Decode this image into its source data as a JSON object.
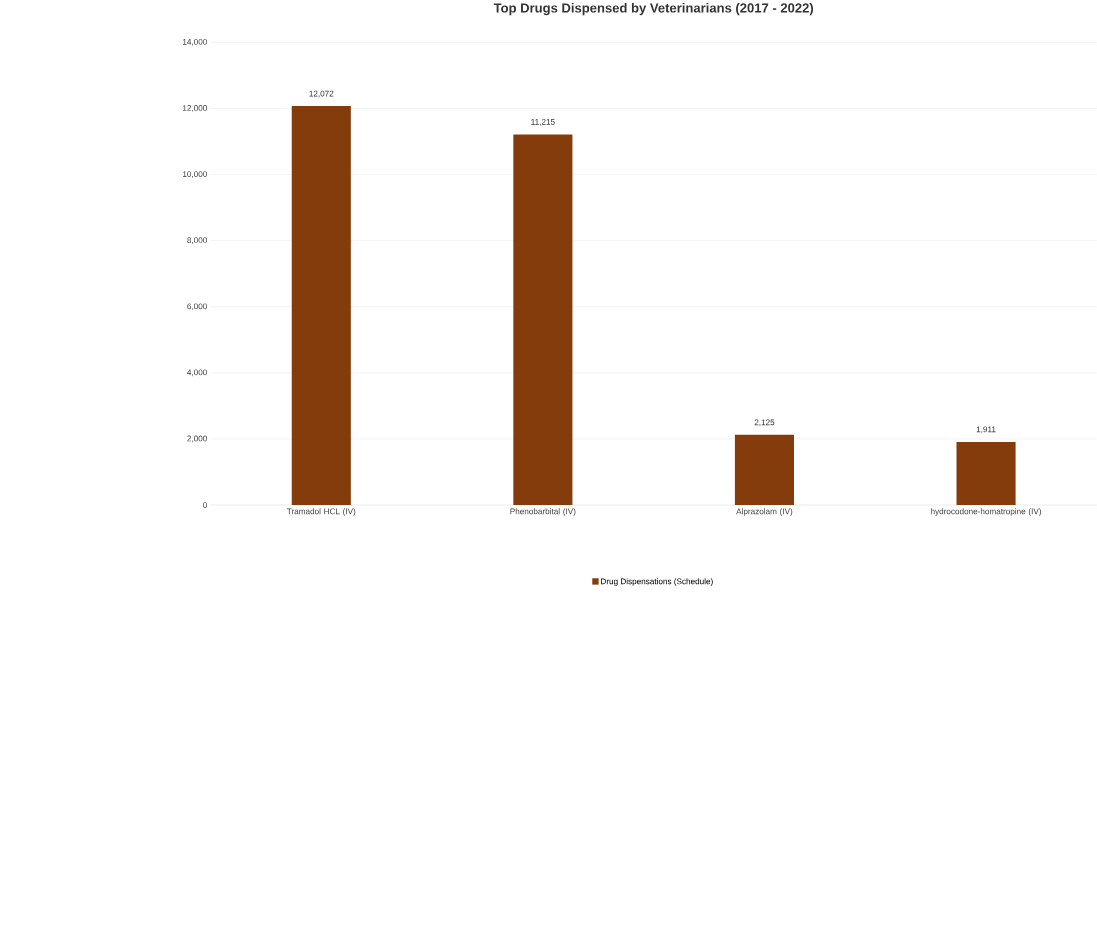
{
  "chart_data": {
    "type": "bar",
    "title": "Top Drugs Dispensed by Veterinarians (2017 - 2022)",
    "categories": [
      "Tramadol HCL (IV)",
      "Phenobarbital (IV)",
      "Alprazolam (IV)",
      "hydrocodone-homatropine (IV)"
    ],
    "series": [
      {
        "name": "Drug Dispensations (Schedule)",
        "color": "#843c0c",
        "values": [
          12072,
          11215,
          2125,
          1911
        ],
        "value_labels": [
          "12,072",
          "11,215",
          "2,125",
          "1,911"
        ]
      }
    ],
    "ylim": [
      0,
      14000
    ],
    "yticks": [
      {
        "value": 0,
        "label": "0"
      },
      {
        "value": 2000,
        "label": "2,000"
      },
      {
        "value": 4000,
        "label": "4,000"
      },
      {
        "value": 6000,
        "label": "6,000"
      },
      {
        "value": 8000,
        "label": "8,000"
      },
      {
        "value": 10000,
        "label": "10,000"
      },
      {
        "value": 12000,
        "label": "12,000"
      },
      {
        "value": 14000,
        "label": "14,000"
      }
    ],
    "grid": "y",
    "legend": "bottom"
  }
}
